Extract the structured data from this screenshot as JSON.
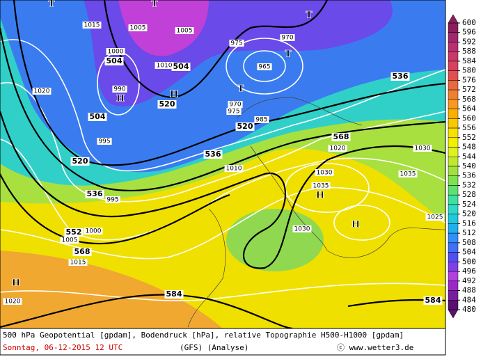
{
  "map": {
    "geopotential_labels": [
      504,
      504,
      504,
      520,
      520,
      520,
      536,
      536,
      536,
      552,
      568,
      568,
      584,
      584
    ],
    "pressure_labels": [
      1015,
      1005,
      1020,
      1005,
      1010,
      1000,
      990,
      995,
      975,
      970,
      965,
      975,
      970,
      985,
      1020,
      1030,
      1035,
      1030,
      1035,
      1025,
      1020,
      1015,
      1005,
      1000,
      995,
      1010,
      1030
    ],
    "centers": [
      "T",
      "T",
      "T",
      "T",
      "H",
      "T",
      "H",
      "H",
      "H",
      "H"
    ]
  },
  "colorbar": {
    "labels": [
      600,
      596,
      592,
      588,
      584,
      580,
      576,
      572,
      568,
      564,
      560,
      556,
      552,
      548,
      544,
      540,
      536,
      532,
      528,
      524,
      520,
      516,
      512,
      508,
      504,
      500,
      496,
      492,
      488,
      484,
      480
    ],
    "colors": [
      "#8a1e5a",
      "#a02870",
      "#b83070",
      "#c83868",
      "#d84060",
      "#e05050",
      "#e86840",
      "#f08030",
      "#f89820",
      "#f8b000",
      "#f8c800",
      "#f8e000",
      "#f0f000",
      "#e0f020",
      "#c0e830",
      "#a0e040",
      "#80e050",
      "#60e070",
      "#40e0a0",
      "#30d8c8",
      "#20c8e0",
      "#20b0f0",
      "#3090f8",
      "#4070f8",
      "#5050f0",
      "#8040e8",
      "#b040e0",
      "#9a2ac8",
      "#7a1ea0",
      "#5a1070"
    ]
  },
  "caption": {
    "line1": "500 hPa Geopotential [gpdam], Bodendruck [hPa], relative Topographie H500-H1000 [gpdam]",
    "date": "Sonntag, 06-12-2015  12 UTC",
    "model": "(GFS)  (Analyse)",
    "credit": "ⓒ www.wetter3.de"
  }
}
